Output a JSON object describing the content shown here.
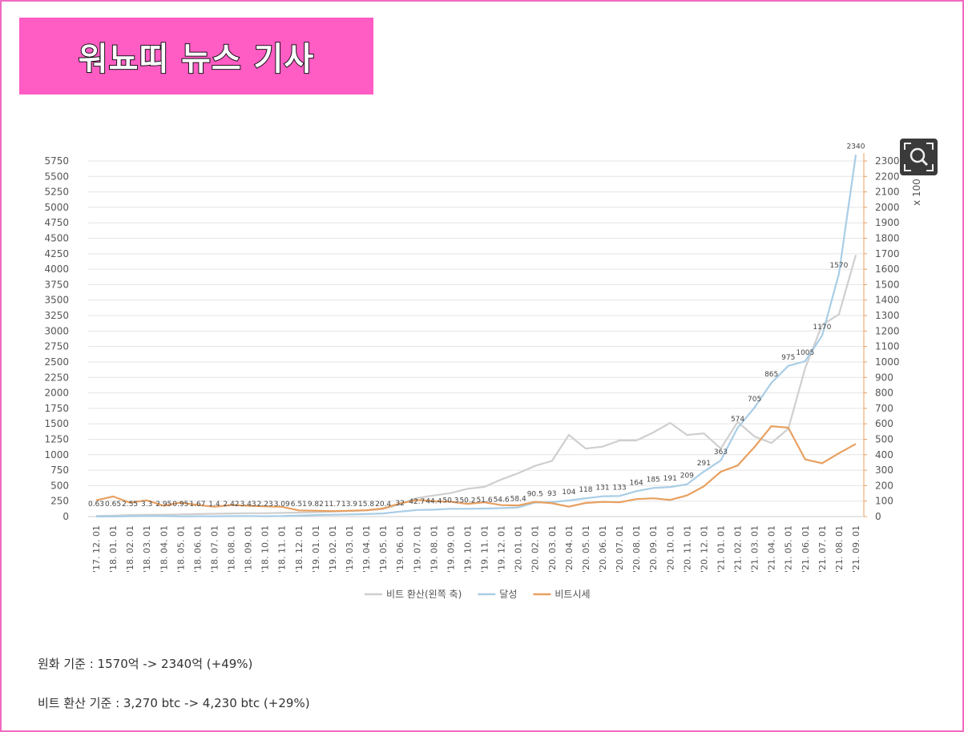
{
  "header": {
    "title": "워뇨띠 뉴스 기사"
  },
  "chart_data": {
    "type": "line",
    "y2label": "x 100",
    "categories": [
      "'17. 12. 01",
      "'18. 01. 01",
      "'18. 02. 01",
      "'18. 03. 01",
      "'18. 04. 01",
      "'18. 05. 01",
      "'18. 06. 01",
      "'18. 07. 01",
      "'18. 08. 01",
      "'18. 09. 01",
      "'18. 10. 01",
      "'18. 11. 01",
      "'18. 12. 01",
      "'19. 01. 01",
      "'19. 02. 01",
      "'19. 03. 01",
      "'19. 04. 01",
      "'19. 05. 01",
      "'19. 06. 01",
      "'19. 07. 01",
      "'19. 08. 01",
      "'19. 09. 01",
      "'19. 10. 01",
      "'19. 11. 01",
      "'19. 12. 01",
      "'20. 01. 01",
      "'20. 02. 01",
      "'20. 03. 01",
      "'20. 04. 01",
      "'20. 05. 01",
      "'20. 06. 01",
      "'20. 07. 01",
      "'20. 08. 01",
      "'20. 09. 01",
      "'20. 10. 01",
      "'20. 11. 01",
      "'20. 12. 01",
      "'21. 01. 01",
      "'21. 02. 01",
      "'21. 03. 01",
      "'21. 04. 01",
      "'21. 05. 01",
      "'21. 06. 01",
      "'21. 07. 01",
      "'21. 08. 01",
      "'21. 09. 01"
    ],
    "series": [
      {
        "name": "비트 환산(왼쪽 축)",
        "color": "#cfcfcf",
        "values": [
          10,
          15,
          25,
          30,
          30,
          35,
          40,
          45,
          50,
          55,
          55,
          60,
          65,
          70,
          80,
          90,
          100,
          120,
          200,
          300,
          340,
          380,
          450,
          480,
          600,
          700,
          820,
          900,
          1320,
          1100,
          1130,
          1230,
          1230,
          1360,
          1515,
          1320,
          1345,
          1100,
          1530,
          1295,
          1190,
          1420,
          2400,
          3100,
          3270,
          4230
        ]
      },
      {
        "name": "달성",
        "color": "#a9cde6",
        "axis": "y2",
        "values": [
          0.63,
          0.65,
          2.55,
          3.3,
          2.95,
          0.95,
          1.67,
          1.4,
          2.42,
          3.43,
          2.23,
          3.09,
          6.51,
          9.82,
          11.7,
          13.9,
          15.8,
          20.4,
          32,
          42.7,
          44.4,
          50.3,
          50.2,
          51.6,
          54.6,
          58.4,
          90.5,
          93,
          104,
          118,
          131,
          133,
          164,
          185,
          191,
          209,
          291,
          363,
          574,
          705,
          865,
          975,
          1005,
          1170,
          1570,
          2340
        ]
      },
      {
        "name": "비트시세",
        "color": "#e8a060",
        "axis": "y2",
        "values": [
          105,
          130,
          90,
          105,
          70,
          90,
          75,
          63,
          75,
          70,
          66,
          63,
          40,
          38,
          35,
          38,
          41,
          53,
          85,
          107,
          100,
          96,
          82,
          92,
          74,
          72,
          95,
          86,
          64,
          88,
          95,
          92,
          113,
          118,
          108,
          137,
          196,
          290,
          330,
          450,
          585,
          575,
          370,
          345,
          410,
          470
        ]
      }
    ],
    "ylim": [
      0,
      5750
    ],
    "yticks": [
      0,
      250,
      500,
      750,
      1000,
      1250,
      1500,
      1750,
      2000,
      2250,
      2500,
      2750,
      3000,
      3250,
      3500,
      3750,
      4000,
      4250,
      4500,
      4750,
      5000,
      5250,
      5500,
      5750
    ],
    "y2lim": [
      0,
      2300
    ],
    "y2ticks": [
      0,
      100,
      200,
      300,
      400,
      500,
      600,
      700,
      800,
      900,
      1000,
      1100,
      1200,
      1300,
      1400,
      1500,
      1600,
      1700,
      1800,
      1900,
      2000,
      2100,
      2200,
      2300
    ],
    "grid": true,
    "legend": "bottom"
  },
  "notes": [
    "원화 기준 : 1570억 -> 2340억 (+49%)",
    "비트 환산 기준 : 3,270 btc -> 4,230 btc (+29%)"
  ]
}
